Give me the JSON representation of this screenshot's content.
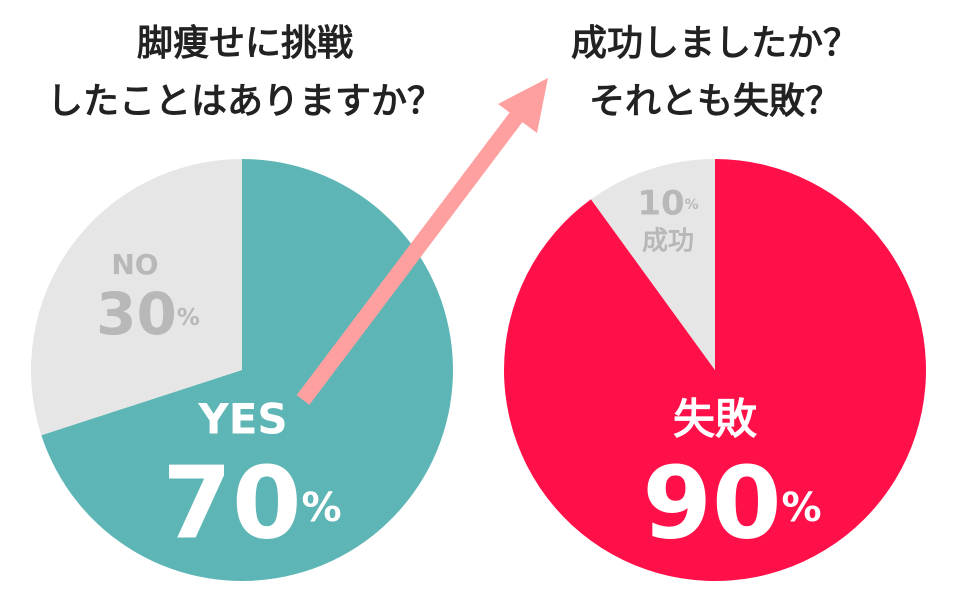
{
  "chart_data": [
    {
      "type": "pie",
      "title_lines": [
        "脚痩せに挑戦",
        "したことはありますか？"
      ],
      "categories": [
        "YES",
        "NO"
      ],
      "values": [
        70,
        30
      ],
      "value_labels": [
        "70%",
        "30%"
      ],
      "colors": [
        "#5eb5b5",
        "#e6e6e6"
      ]
    },
    {
      "type": "pie",
      "title_lines": [
        "成功しましたか？",
        "それとも失敗？"
      ],
      "categories": [
        "失敗",
        "成功"
      ],
      "values": [
        90,
        10
      ],
      "value_labels": [
        "90%",
        "10%"
      ],
      "colors": [
        "#ff1049",
        "#e6e6e6"
      ]
    }
  ]
}
